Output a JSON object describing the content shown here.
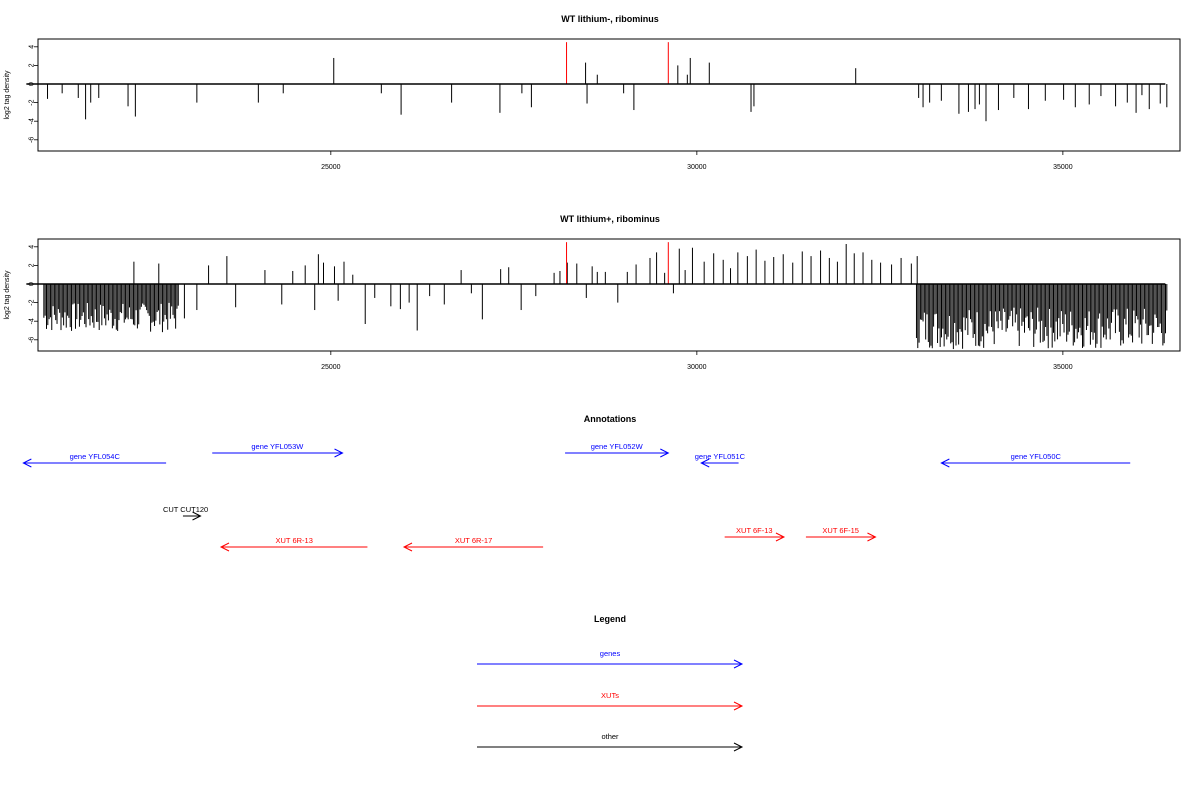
{
  "chart_data": [
    {
      "type": "bar",
      "title": "WT lithium-, ribominus",
      "ylabel": "log2 tag density",
      "xlim": [
        20800,
        36400
      ],
      "ylim": [
        -7,
        4.5
      ],
      "yticks": [
        4,
        2,
        0,
        -2,
        -4,
        -6
      ],
      "xticks": [
        25000,
        30000,
        35000
      ],
      "x_tick_labels": [
        "25000",
        "30000",
        "35000"
      ],
      "colors": {
        "default": "#000000",
        "highlight": "#ff0000"
      },
      "highlight_x": [
        28220,
        29610
      ],
      "highlight_value": 4.5,
      "bars": [
        [
          21130,
          -1.6
        ],
        [
          21330,
          -1.0
        ],
        [
          21550,
          -1.5
        ],
        [
          21650,
          -3.8
        ],
        [
          21720,
          -2.0
        ],
        [
          21830,
          -1.5
        ],
        [
          22230,
          -2.4
        ],
        [
          22330,
          -3.5
        ],
        [
          23170,
          -2.0
        ],
        [
          24010,
          -2.0
        ],
        [
          24350,
          -1.0
        ],
        [
          25040,
          2.8
        ],
        [
          25690,
          -1.0
        ],
        [
          25960,
          -3.3
        ],
        [
          26650,
          -2.0
        ],
        [
          27310,
          -3.1
        ],
        [
          27610,
          -1.0
        ],
        [
          27740,
          -2.5
        ],
        [
          28480,
          2.3
        ],
        [
          28500,
          -2.1
        ],
        [
          28640,
          1.0
        ],
        [
          29000,
          -1.0
        ],
        [
          29140,
          -2.8
        ],
        [
          29740,
          2.0
        ],
        [
          29870,
          1.0
        ],
        [
          29910,
          2.8
        ],
        [
          30170,
          2.3
        ],
        [
          30740,
          -3.0
        ],
        [
          30780,
          -2.4
        ],
        [
          32170,
          1.7
        ],
        [
          33030,
          -1.5
        ],
        [
          33090,
          -2.5
        ],
        [
          33180,
          -2.0
        ],
        [
          33340,
          -1.8
        ],
        [
          33580,
          -3.2
        ],
        [
          33710,
          -3.0
        ],
        [
          33800,
          -2.7
        ],
        [
          33860,
          -2.2
        ],
        [
          33950,
          -4.0
        ],
        [
          34120,
          -2.8
        ],
        [
          34330,
          -1.5
        ],
        [
          34530,
          -2.7
        ],
        [
          34760,
          -1.8
        ],
        [
          35010,
          -1.7
        ],
        [
          35170,
          -2.5
        ],
        [
          35360,
          -2.2
        ],
        [
          35520,
          -1.3
        ],
        [
          35720,
          -2.4
        ],
        [
          35880,
          -2.0
        ],
        [
          36000,
          -3.1
        ],
        [
          36080,
          -1.2
        ],
        [
          36180,
          -2.7
        ],
        [
          36330,
          -2.1
        ],
        [
          36420,
          -2.5
        ]
      ]
    },
    {
      "type": "bar",
      "title": "WT lithium+, ribominus",
      "ylabel": "log2 tag density",
      "xlim": [
        20800,
        36400
      ],
      "ylim": [
        -7,
        4.5
      ],
      "yticks": [
        4,
        2,
        0,
        -2,
        -4,
        -6
      ],
      "xticks": [
        25000,
        30000,
        35000
      ],
      "x_tick_labels": [
        "25000",
        "30000",
        "35000"
      ],
      "colors": {
        "default": "#000000",
        "highlight": "#ff0000"
      },
      "highlight_x": [
        28220,
        29610
      ],
      "highlight_value": 4.5,
      "dense_negative_ranges": [
        [
          21080,
          22930,
          -5.2,
          -2.0
        ],
        [
          33000,
          36420,
          -7.0,
          -2.5
        ]
      ],
      "bars": [
        [
          22310,
          2.4
        ],
        [
          22650,
          2.2
        ],
        [
          23000,
          -3.7
        ],
        [
          23170,
          -2.8
        ],
        [
          23330,
          2.0
        ],
        [
          23580,
          3.0
        ],
        [
          23700,
          -2.5
        ],
        [
          24100,
          1.5
        ],
        [
          24330,
          -2.2
        ],
        [
          24480,
          1.4
        ],
        [
          24650,
          2.0
        ],
        [
          24780,
          -2.8
        ],
        [
          24830,
          3.2
        ],
        [
          24900,
          2.3
        ],
        [
          25050,
          1.9
        ],
        [
          25100,
          -1.8
        ],
        [
          25180,
          2.4
        ],
        [
          25300,
          1.0
        ],
        [
          25470,
          -4.3
        ],
        [
          25600,
          -1.5
        ],
        [
          25820,
          -2.4
        ],
        [
          25950,
          -2.7
        ],
        [
          26070,
          -2.0
        ],
        [
          26180,
          -5.0
        ],
        [
          26350,
          -1.3
        ],
        [
          26550,
          -2.2
        ],
        [
          26780,
          1.5
        ],
        [
          26920,
          -1.0
        ],
        [
          27070,
          -3.8
        ],
        [
          27320,
          1.6
        ],
        [
          27430,
          1.8
        ],
        [
          27600,
          -2.8
        ],
        [
          27800,
          -1.3
        ],
        [
          28050,
          1.2
        ],
        [
          28130,
          1.4
        ],
        [
          28230,
          2.3
        ],
        [
          28360,
          2.2
        ],
        [
          28490,
          -1.5
        ],
        [
          28570,
          1.9
        ],
        [
          28640,
          1.3
        ],
        [
          28750,
          1.3
        ],
        [
          28920,
          -2.0
        ],
        [
          29050,
          1.3
        ],
        [
          29170,
          2.1
        ],
        [
          29360,
          2.8
        ],
        [
          29450,
          3.4
        ],
        [
          29560,
          1.2
        ],
        [
          29680,
          -1.0
        ],
        [
          29760,
          3.8
        ],
        [
          29840,
          1.5
        ],
        [
          29940,
          3.9
        ],
        [
          30100,
          2.4
        ],
        [
          30230,
          3.3
        ],
        [
          30360,
          2.6
        ],
        [
          30460,
          1.7
        ],
        [
          30560,
          3.4
        ],
        [
          30690,
          3.0
        ],
        [
          30810,
          3.7
        ],
        [
          30930,
          2.5
        ],
        [
          31050,
          2.9
        ],
        [
          31180,
          3.2
        ],
        [
          31310,
          2.3
        ],
        [
          31440,
          3.5
        ],
        [
          31560,
          3.0
        ],
        [
          31690,
          3.6
        ],
        [
          31810,
          2.8
        ],
        [
          31920,
          2.4
        ],
        [
          32040,
          4.3
        ],
        [
          32150,
          3.3
        ],
        [
          32270,
          3.4
        ],
        [
          32390,
          2.6
        ],
        [
          32510,
          2.3
        ],
        [
          32660,
          2.1
        ],
        [
          32790,
          2.8
        ],
        [
          32930,
          2.2
        ],
        [
          33010,
          3.0
        ]
      ]
    }
  ],
  "annotations": {
    "title": "Annotations",
    "colors": {
      "gene": "#0000ff",
      "xut": "#ff0000",
      "other": "#000000"
    },
    "items": [
      {
        "label": "gene YFL054C",
        "type": "gene",
        "direction": "left",
        "start": 20800,
        "end": 22750
      },
      {
        "label": "gene YFL053W",
        "type": "gene",
        "direction": "right",
        "start": 23380,
        "end": 25160
      },
      {
        "label": "gene YFL052W",
        "type": "gene",
        "direction": "right",
        "start": 28200,
        "end": 29610
      },
      {
        "label": "gene YFL051C",
        "type": "gene",
        "direction": "left",
        "start": 30060,
        "end": 30570
      },
      {
        "label": "gene YFL050C",
        "type": "gene",
        "direction": "left",
        "start": 33340,
        "end": 35920
      },
      {
        "label": "CUT CUT120",
        "type": "other",
        "direction": "right",
        "start": 22980,
        "end": 23220
      },
      {
        "label": "XUT 6R-13",
        "type": "xut",
        "direction": "left",
        "start": 23500,
        "end": 25500
      },
      {
        "label": "XUT 6R-17",
        "type": "xut",
        "direction": "left",
        "start": 26000,
        "end": 27900
      },
      {
        "label": "XUT 6F-13",
        "type": "xut",
        "direction": "right",
        "start": 30380,
        "end": 31190
      },
      {
        "label": "XUT 6F-15",
        "type": "xut",
        "direction": "right",
        "start": 31490,
        "end": 32440
      }
    ]
  },
  "legend": {
    "title": "Legend",
    "items": [
      {
        "label": "genes",
        "type": "gene"
      },
      {
        "label": "XUTs",
        "type": "xut"
      },
      {
        "label": "other",
        "type": "other"
      }
    ]
  }
}
